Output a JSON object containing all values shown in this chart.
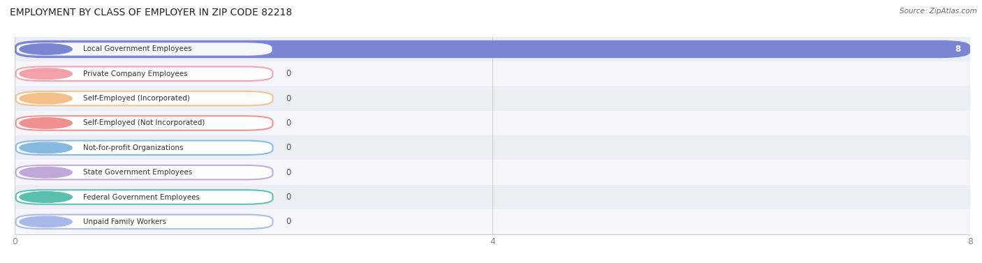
{
  "title": "EMPLOYMENT BY CLASS OF EMPLOYER IN ZIP CODE 82218",
  "source": "Source: ZipAtlas.com",
  "categories": [
    "Local Government Employees",
    "Private Company Employees",
    "Self-Employed (Incorporated)",
    "Self-Employed (Not Incorporated)",
    "Not-for-profit Organizations",
    "State Government Employees",
    "Federal Government Employees",
    "Unpaid Family Workers"
  ],
  "values": [
    8,
    0,
    0,
    0,
    0,
    0,
    0,
    0
  ],
  "bar_colors": [
    "#7b85d4",
    "#f4a0aa",
    "#f5c08a",
    "#f4a0aa",
    "#a8c8e8",
    "#c8a8d8",
    "#6dcfbe",
    "#b8c8f0"
  ],
  "label_pill_colors": [
    "#7b85d4",
    "#f4a0aa",
    "#f5c08a",
    "#f09090",
    "#87b8e0",
    "#c0a8d8",
    "#5bbfad",
    "#a8b8e8"
  ],
  "row_colors": [
    "#eceef6",
    "#f5f5fa",
    "#eceef6",
    "#f5f5fa",
    "#eceef6",
    "#f5f5fa",
    "#eceef6",
    "#f5f5fa"
  ],
  "xlim": [
    0,
    8
  ],
  "xticks": [
    0,
    4,
    8
  ],
  "title_fontsize": 10,
  "bar_height": 0.72
}
